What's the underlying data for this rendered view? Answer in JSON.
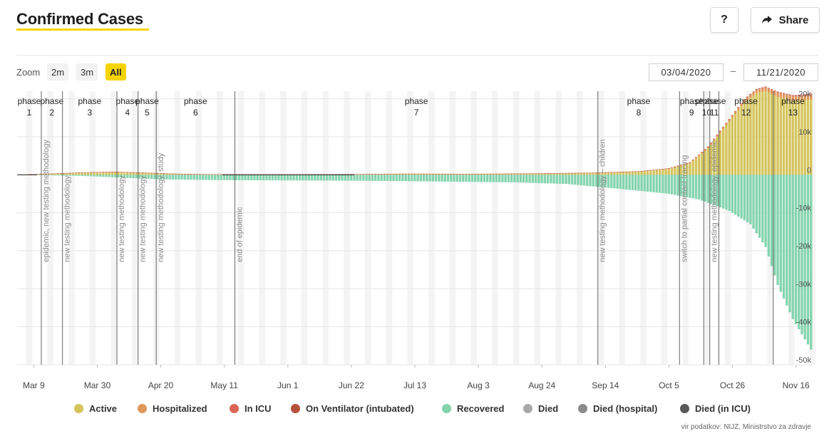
{
  "header": {
    "title": "Confirmed Cases",
    "help_label": "?",
    "share_label": "Share"
  },
  "zoom": {
    "label": "Zoom",
    "options": [
      "2m",
      "3m",
      "All"
    ],
    "selected": "All"
  },
  "date_range": {
    "from": "03/04/2020",
    "separator": "–",
    "to": "11/21/2020"
  },
  "colors": {
    "accent": "#f5d400",
    "active": "#d4c45a",
    "hospitalized": "#e0975a",
    "icu": "#dc6454",
    "ventilator": "#b5523b",
    "recovered": "#83d4ad",
    "died": "#a8a8a8",
    "died_hospital": "#8a8a8a",
    "died_icu": "#595959"
  },
  "chart_data": {
    "type": "bar",
    "stacked": true,
    "x_start": "2020-03-04",
    "x_end": "2020-11-21",
    "x_ticks": [
      "Mar 9",
      "Mar 30",
      "Apr 20",
      "May 11",
      "Jun 1",
      "Jun 22",
      "Jul 13",
      "Aug 3",
      "Aug 24",
      "Sep 14",
      "Oct 5",
      "Oct 26",
      "Nov 16"
    ],
    "y_ticks": [
      "20k",
      "10k",
      "0",
      "-10k",
      "-20k",
      "-30k",
      "-40k",
      "-50k"
    ],
    "ylim": [
      -50000,
      22000
    ],
    "grid": true,
    "legend_position": "bottom",
    "series": [
      {
        "name": "Active",
        "color_key": "active",
        "points": [
          [
            "2020-03-04",
            0
          ],
          [
            "2020-03-15",
            250
          ],
          [
            "2020-03-25",
            500
          ],
          [
            "2020-04-05",
            650
          ],
          [
            "2020-04-15",
            450
          ],
          [
            "2020-04-25",
            200
          ],
          [
            "2020-05-10",
            60
          ],
          [
            "2020-06-01",
            30
          ],
          [
            "2020-06-20",
            80
          ],
          [
            "2020-07-10",
            200
          ],
          [
            "2020-08-01",
            150
          ],
          [
            "2020-08-20",
            250
          ],
          [
            "2020-09-10",
            450
          ],
          [
            "2020-09-25",
            800
          ],
          [
            "2020-10-05",
            1500
          ],
          [
            "2020-10-12",
            3000
          ],
          [
            "2020-10-18",
            7000
          ],
          [
            "2020-10-22",
            11000
          ],
          [
            "2020-10-26",
            15000
          ],
          [
            "2020-10-30",
            19000
          ],
          [
            "2020-11-03",
            21500
          ],
          [
            "2020-11-06",
            22000
          ],
          [
            "2020-11-10",
            20500
          ],
          [
            "2020-11-15",
            19500
          ],
          [
            "2020-11-21",
            19800
          ]
        ]
      },
      {
        "name": "Hospitalized",
        "color_key": "hospitalized",
        "points": [
          [
            "2020-03-04",
            0
          ],
          [
            "2020-04-01",
            120
          ],
          [
            "2020-05-01",
            20
          ],
          [
            "2020-09-25",
            50
          ],
          [
            "2020-10-15",
            250
          ],
          [
            "2020-10-30",
            700
          ],
          [
            "2020-11-10",
            1100
          ],
          [
            "2020-11-21",
            1200
          ]
        ]
      },
      {
        "name": "In ICU",
        "color_key": "icu",
        "points": [
          [
            "2020-03-04",
            0
          ],
          [
            "2020-04-01",
            30
          ],
          [
            "2020-10-15",
            40
          ],
          [
            "2020-11-05",
            180
          ],
          [
            "2020-11-21",
            200
          ]
        ]
      },
      {
        "name": "On Ventilator (intubated)",
        "color_key": "ventilator",
        "points": [
          [
            "2020-03-04",
            0
          ],
          [
            "2020-10-20",
            30
          ],
          [
            "2020-11-21",
            120
          ]
        ]
      },
      {
        "name": "Recovered",
        "color_key": "recovered",
        "points": [
          [
            "2020-03-04",
            0
          ],
          [
            "2020-03-25",
            -300
          ],
          [
            "2020-04-20",
            -1200
          ],
          [
            "2020-05-10",
            -1400
          ],
          [
            "2020-07-01",
            -1600
          ],
          [
            "2020-08-15",
            -2000
          ],
          [
            "2020-09-01",
            -2400
          ],
          [
            "2020-09-20",
            -3800
          ],
          [
            "2020-10-05",
            -5000
          ],
          [
            "2020-10-15",
            -6500
          ],
          [
            "2020-10-25",
            -9500
          ],
          [
            "2020-11-01",
            -13000
          ],
          [
            "2020-11-06",
            -19000
          ],
          [
            "2020-11-10",
            -29000
          ],
          [
            "2020-11-15",
            -38000
          ],
          [
            "2020-11-21",
            -46000
          ]
        ]
      },
      {
        "name": "Died",
        "color_key": "died",
        "points": []
      },
      {
        "name": "Died (hospital)",
        "color_key": "died_hospital",
        "points": []
      },
      {
        "name": "Died (in ICU)",
        "color_key": "died_icu",
        "points": []
      }
    ],
    "phases": [
      {
        "label": "phase",
        "num": "1",
        "start": "2020-03-04"
      },
      {
        "label": "phase",
        "num": "2",
        "start": "2020-03-12"
      },
      {
        "label": "phase",
        "num": "3",
        "start": "2020-03-19"
      },
      {
        "label": "phase",
        "num": "4",
        "start": "2020-04-06"
      },
      {
        "label": "phase",
        "num": "5",
        "start": "2020-04-13"
      },
      {
        "label": "phase",
        "num": "6",
        "start": "2020-04-19"
      },
      {
        "label": "phase",
        "num": "7",
        "start": "2020-05-15"
      },
      {
        "label": "phase",
        "num": "8",
        "start": "2020-09-12"
      },
      {
        "label": "phase",
        "num": "9",
        "start": "2020-10-09"
      },
      {
        "label": "phase",
        "num": "10",
        "start": "2020-10-17"
      },
      {
        "label": "phase",
        "num": "11",
        "start": "2020-10-19"
      },
      {
        "label": "phase",
        "num": "12",
        "start": "2020-10-22"
      },
      {
        "label": "phase",
        "num": "13",
        "start": "2020-11-09"
      }
    ],
    "annotations": [
      {
        "date": "2020-03-12",
        "text": "epidemic, new testing methodology"
      },
      {
        "date": "2020-03-19",
        "text": "new testing methodology"
      },
      {
        "date": "2020-04-06",
        "text": "new testing methodology"
      },
      {
        "date": "2020-04-13",
        "text": "new testing methodology"
      },
      {
        "date": "2020-04-19",
        "text": "new testing methodology, study"
      },
      {
        "date": "2020-05-15",
        "text": "end of epidemic"
      },
      {
        "date": "2020-09-12",
        "text": "new testing methodology – children"
      },
      {
        "date": "2020-10-09",
        "text": "switch to partial contact tracing"
      },
      {
        "date": "2020-10-19",
        "text": "new testing methodology, epidemic"
      }
    ]
  },
  "legend": [
    {
      "label": "Active",
      "color_key": "active"
    },
    {
      "label": "Hospitalized",
      "color_key": "hospitalized"
    },
    {
      "label": "In ICU",
      "color_key": "icu"
    },
    {
      "label": "On Ventilator (intubated)",
      "color_key": "ventilator"
    },
    {
      "label": "Recovered",
      "color_key": "recovered"
    },
    {
      "label": "Died",
      "color_key": "died"
    },
    {
      "label": "Died (hospital)",
      "color_key": "died_hospital"
    },
    {
      "label": "Died (in ICU)",
      "color_key": "died_icu"
    }
  ],
  "source": "vir podatkov: NIJZ, Ministrstvo za zdravje"
}
